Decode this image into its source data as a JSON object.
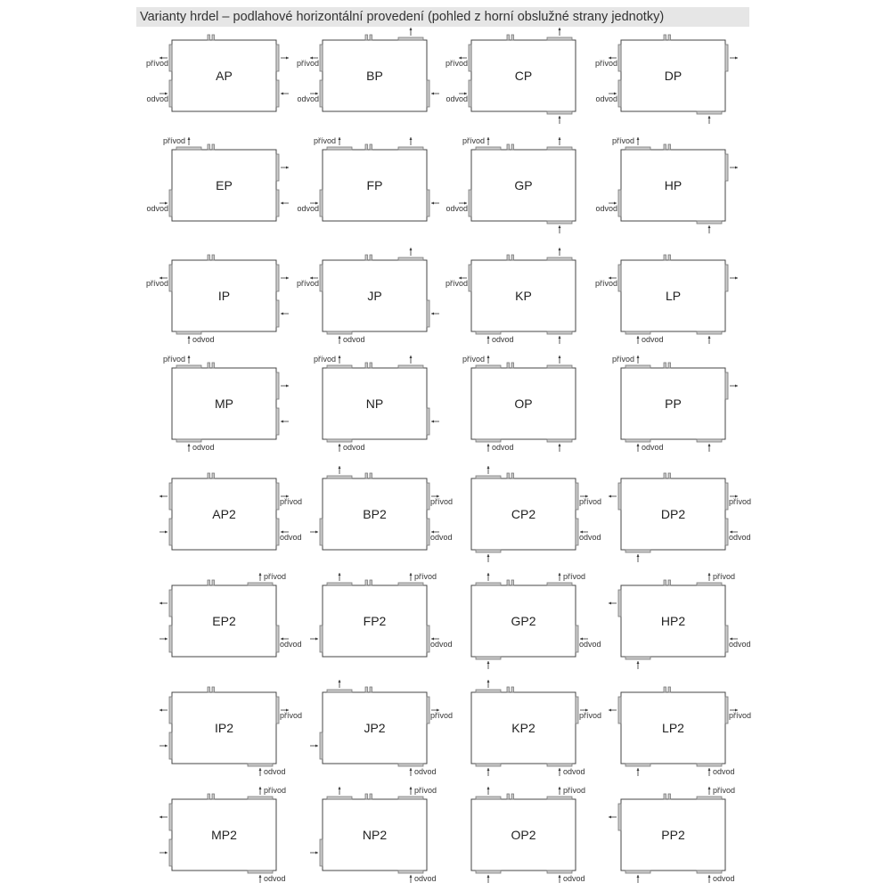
{
  "title": "Varianty hrdel – podlahové horizontální provedení (pohled z horní obslužné strany jednotky)",
  "labels": {
    "supply": "přívod",
    "exhaust": "odvod"
  },
  "variants": [
    [
      "AP",
      "BP",
      "CP",
      "DP"
    ],
    [
      "EP",
      "FP",
      "GP",
      "HP"
    ],
    [
      "IP",
      "JP",
      "KP",
      "LP"
    ],
    [
      "MP",
      "NP",
      "OP",
      "PP"
    ],
    [
      "AP2",
      "BP2",
      "CP2",
      "DP2"
    ],
    [
      "EP2",
      "FP2",
      "GP2",
      "HP2"
    ],
    [
      "IP2",
      "JP2",
      "KP2",
      "LP2"
    ],
    [
      "MP2",
      "NP2",
      "OP2",
      "PP2"
    ]
  ],
  "colors": {
    "port": "#cccccc",
    "outline": "#444444",
    "title_bar": "#e6e6e6"
  }
}
